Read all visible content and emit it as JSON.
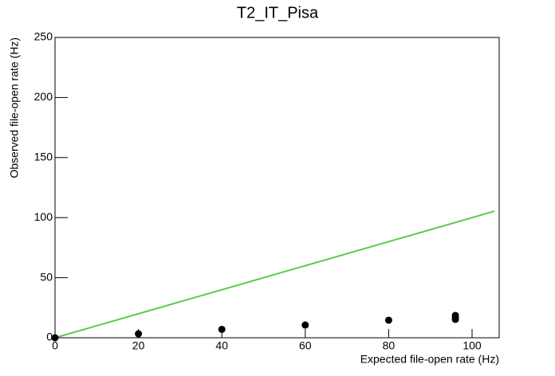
{
  "chart_data": {
    "type": "scatter",
    "title": "T2_IT_Pisa",
    "x_label": "Expected file-open rate (Hz)",
    "y_label": "Observed file-open rate (Hz)",
    "xlim": [
      0,
      106.5
    ],
    "ylim": [
      0,
      250
    ],
    "xticks": [
      0,
      20,
      40,
      60,
      80,
      100
    ],
    "yticks": [
      0,
      50,
      100,
      150,
      200,
      250
    ],
    "series": [
      {
        "color": "#000000",
        "x": [
          0,
          20,
          40,
          60,
          80,
          96,
          96,
          96
        ],
        "values": [
          0,
          3.3,
          7,
          10.6,
          14.6,
          18.6,
          16.6,
          15.3
        ]
      }
    ],
    "lines": [
      {
        "color": "#5acb4a",
        "x": [
          0,
          105.4
        ],
        "values": [
          0,
          105.4
        ]
      }
    ]
  }
}
